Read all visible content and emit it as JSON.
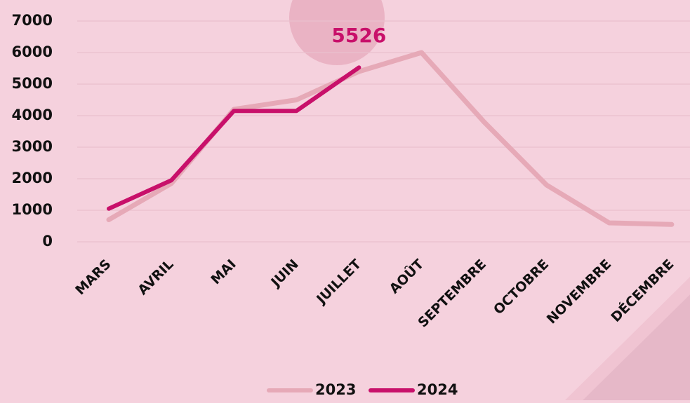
{
  "chart_data": {
    "type": "line",
    "categories": [
      "MARS",
      "AVRIL",
      "MAI",
      "JUIN",
      "JUILLET",
      "AOÛT",
      "SEPTEMBRE",
      "OCTOBRE",
      "NOVEMBRE",
      "DÉCEMBRE"
    ],
    "series": [
      {
        "name": "2023",
        "color": "#e6a9b7",
        "values": [
          700,
          1850,
          4200,
          4500,
          5400,
          6000,
          3800,
          1800,
          600,
          550
        ]
      },
      {
        "name": "2024",
        "color": "#c8106a",
        "values": [
          1050,
          1950,
          4150,
          4150,
          5526,
          null,
          null,
          null,
          null,
          null
        ]
      }
    ],
    "ylim": [
      0,
      7000
    ],
    "yticks": [
      0,
      1000,
      2000,
      3000,
      4000,
      5000,
      6000,
      7000
    ],
    "grid": true
  }
}
